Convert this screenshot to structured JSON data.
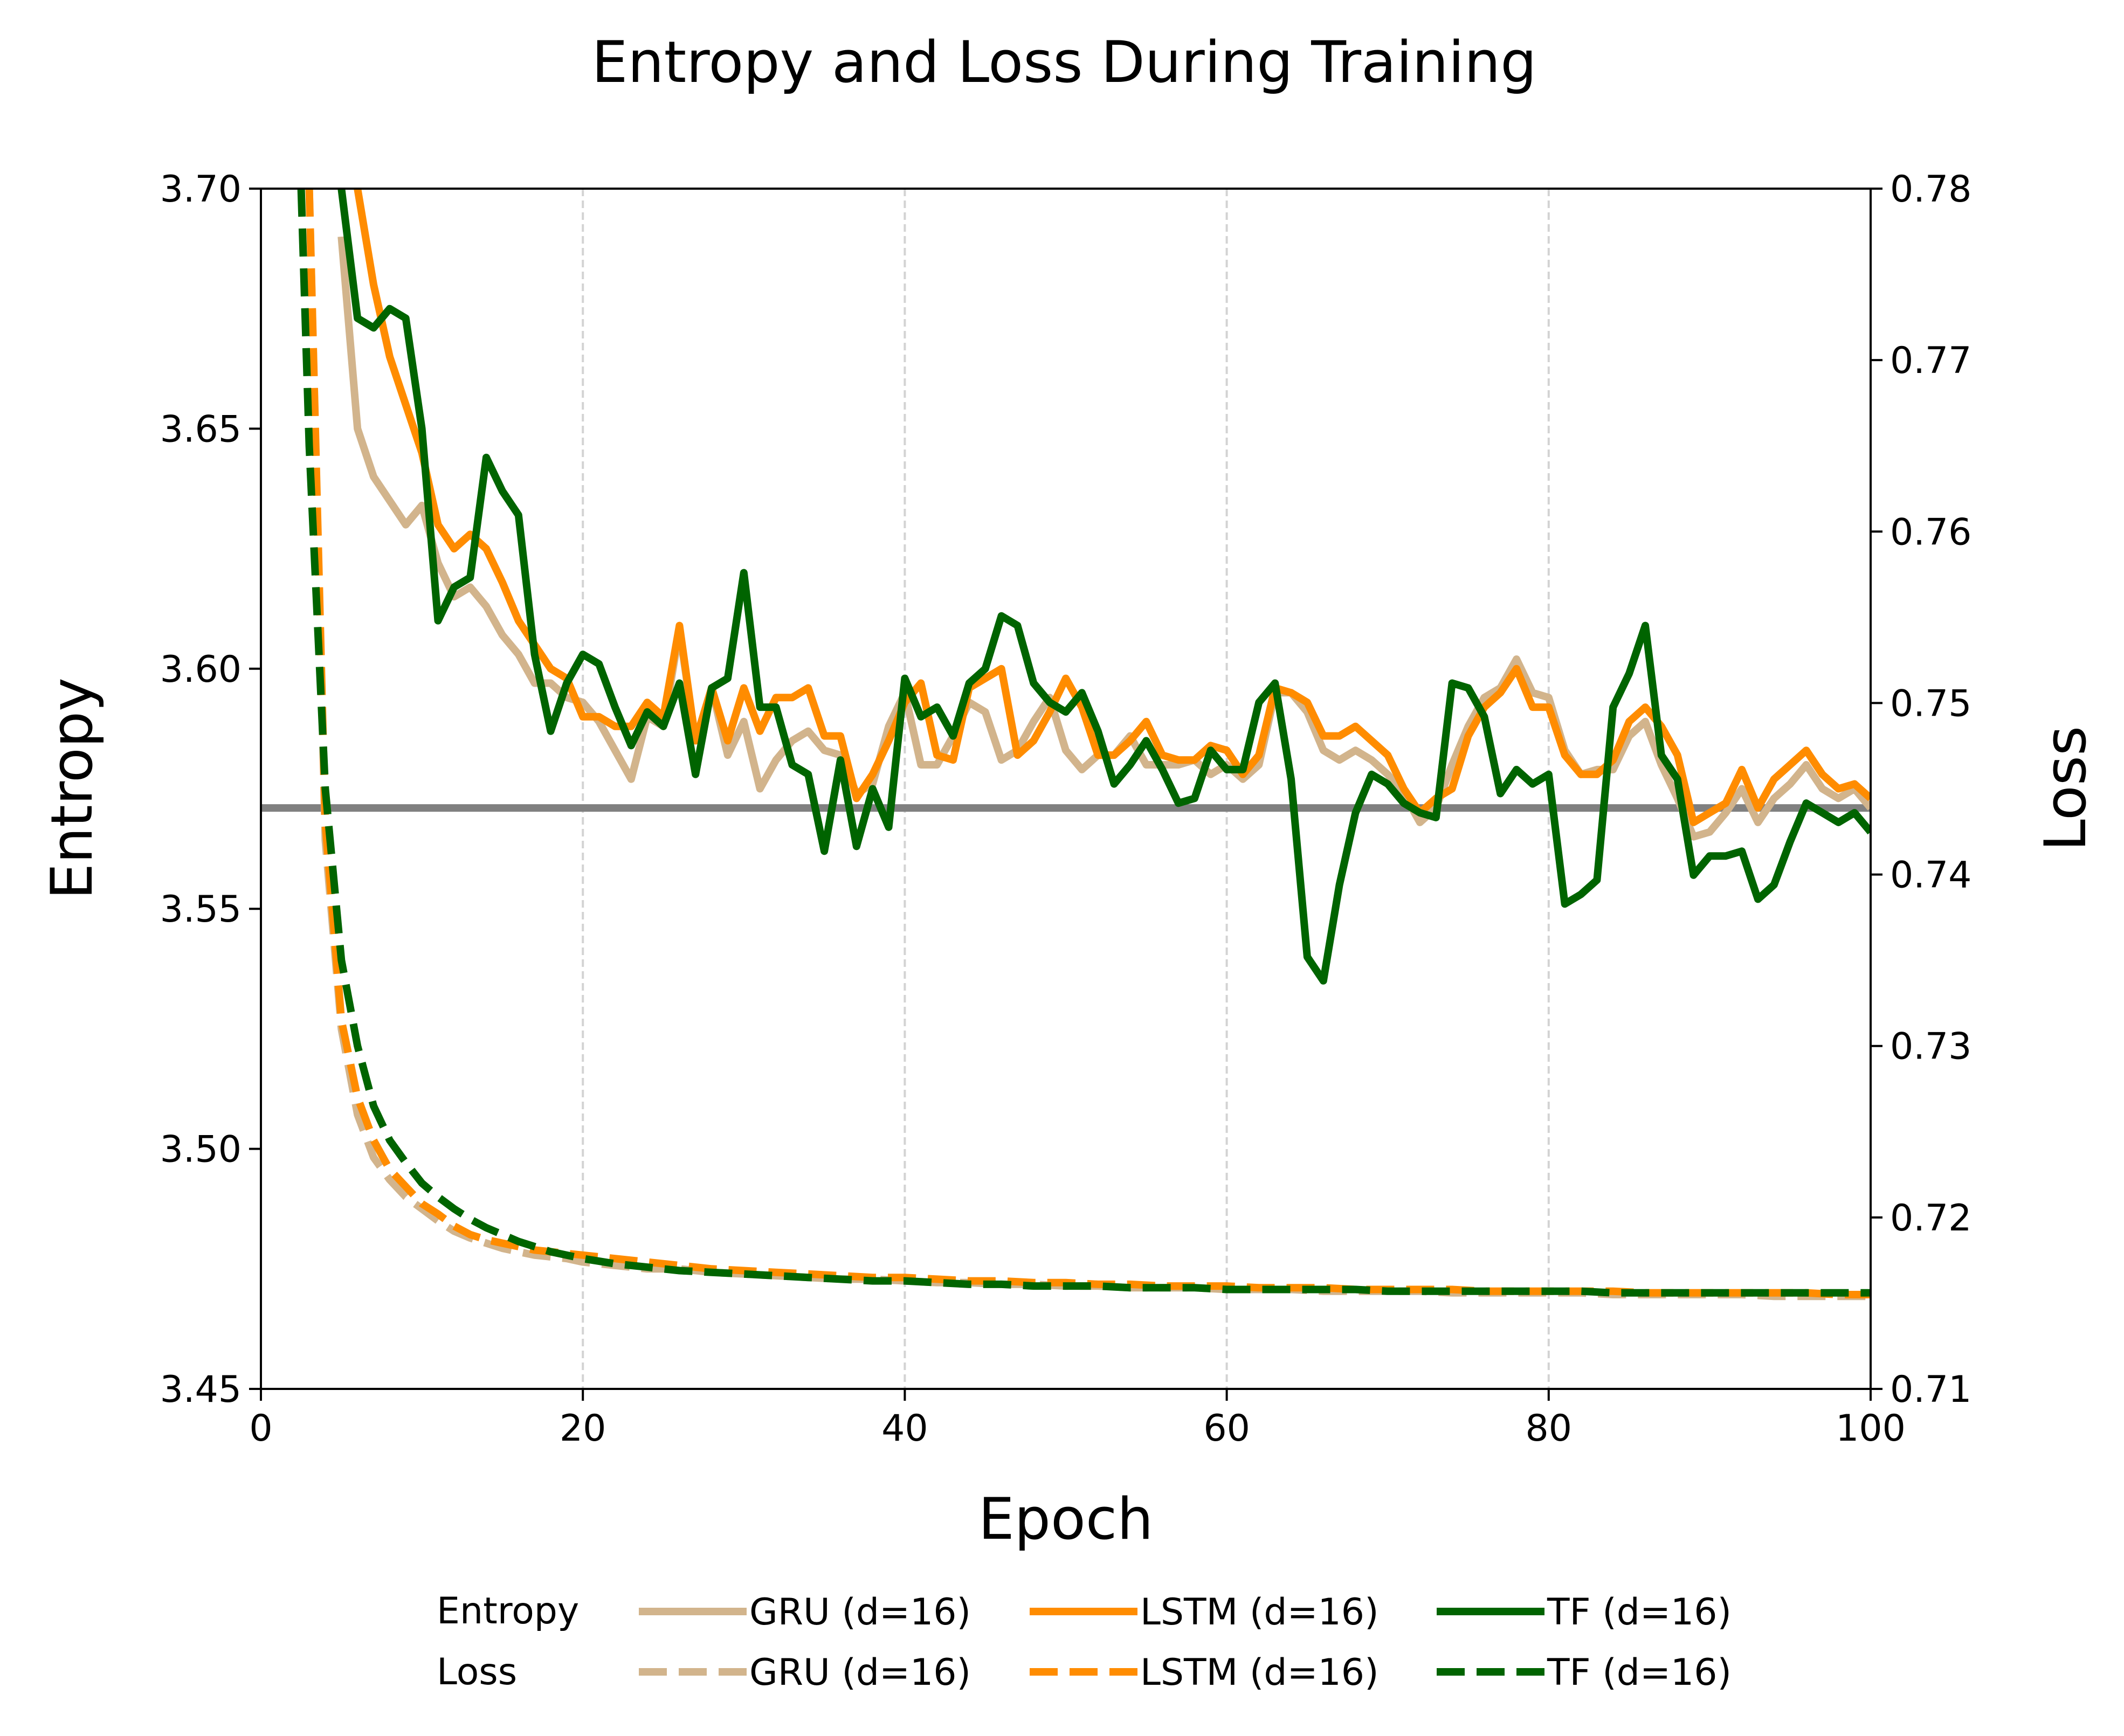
{
  "chart_data": {
    "type": "line",
    "title": "Entropy and Loss During Training",
    "xlabel": "Epoch",
    "ylabel": "Entropy",
    "y2label": "Loss",
    "xlim": [
      0,
      100
    ],
    "ylim": [
      3.45,
      3.7
    ],
    "y2lim": [
      0.71,
      0.78
    ],
    "xticks": [
      0,
      20,
      40,
      60,
      80,
      100
    ],
    "xtick_labels": [
      "0",
      "20",
      "40",
      "60",
      "80",
      "100"
    ],
    "yticks": [
      3.45,
      3.5,
      3.55,
      3.6,
      3.65,
      3.7
    ],
    "ytick_labels": [
      "3.45",
      "3.50",
      "3.55",
      "3.60",
      "3.65",
      "3.70"
    ],
    "y2ticks": [
      0.71,
      0.72,
      0.73,
      0.74,
      0.75,
      0.76,
      0.77,
      0.78
    ],
    "y2tick_labels": [
      "0.71",
      "0.72",
      "0.73",
      "0.74",
      "0.75",
      "0.76",
      "0.77",
      "0.78"
    ],
    "grid": "vertical dashed at x ticks",
    "reference_line": {
      "axis": "entropy",
      "y": 3.571,
      "color": "#808080"
    },
    "legend": {
      "placement": "bottom-center",
      "row_labels": [
        "Entropy",
        "Loss"
      ],
      "entries": [
        {
          "label": "GRU (d=16)",
          "row": "Entropy",
          "color": "#d2b48c",
          "style": "solid"
        },
        {
          "label": "LSTM (d=16)",
          "row": "Entropy",
          "color": "#ff8c00",
          "style": "solid"
        },
        {
          "label": "TF (d=16)",
          "row": "Entropy",
          "color": "#006400",
          "style": "solid"
        },
        {
          "label": "GRU (d=16)",
          "row": "Loss",
          "color": "#d2b48c",
          "style": "dashed"
        },
        {
          "label": "LSTM (d=16)",
          "row": "Loss",
          "color": "#ff8c00",
          "style": "dashed"
        },
        {
          "label": "TF (d=16)",
          "row": "Loss",
          "color": "#006400",
          "style": "dashed"
        }
      ]
    },
    "series": [
      {
        "name": "GRU (d=16)",
        "metric": "Entropy",
        "axis": "left",
        "color": "#d2b48c",
        "style": "solid",
        "x": [
          5,
          6,
          7,
          9,
          10,
          11,
          12,
          13,
          14,
          15,
          16,
          17,
          18,
          19,
          20,
          21,
          22,
          23,
          24,
          25,
          26,
          27,
          28,
          29,
          30,
          31,
          32,
          33,
          34,
          35,
          36,
          37,
          38,
          39,
          40,
          41,
          42,
          43,
          44,
          45,
          46,
          47,
          48,
          49,
          50,
          51,
          52,
          53,
          54,
          55,
          56,
          57,
          58,
          59,
          60,
          61,
          62,
          63,
          64,
          65,
          66,
          67,
          68,
          69,
          70,
          71,
          72,
          73,
          74,
          75,
          76,
          77,
          78,
          79,
          80,
          81,
          82,
          83,
          84,
          85,
          86,
          87,
          88,
          89,
          90,
          91,
          92,
          93,
          94,
          95,
          96,
          97,
          98,
          99,
          100
        ],
        "values": [
          3.69,
          3.65,
          3.64,
          3.63,
          3.634,
          3.622,
          3.615,
          3.617,
          3.613,
          3.607,
          3.603,
          3.597,
          3.597,
          3.594,
          3.593,
          3.589,
          3.583,
          3.577,
          3.59,
          3.588,
          3.608,
          3.585,
          3.596,
          3.582,
          3.589,
          3.575,
          3.581,
          3.585,
          3.587,
          3.583,
          3.582,
          3.574,
          3.576,
          3.588,
          3.595,
          3.58,
          3.58,
          3.586,
          3.593,
          3.591,
          3.581,
          3.583,
          3.589,
          3.594,
          3.583,
          3.579,
          3.582,
          3.582,
          3.586,
          3.58,
          3.58,
          3.58,
          3.581,
          3.578,
          3.58,
          3.577,
          3.58,
          3.595,
          3.595,
          3.591,
          3.583,
          3.581,
          3.583,
          3.581,
          3.578,
          3.574,
          3.568,
          3.571,
          3.58,
          3.588,
          3.594,
          3.596,
          3.602,
          3.595,
          3.594,
          3.583,
          3.578,
          3.579,
          3.579,
          3.586,
          3.589,
          3.58,
          3.573,
          3.565,
          3.566,
          3.57,
          3.575,
          3.568,
          3.573,
          3.576,
          3.58,
          3.575,
          3.573,
          3.575,
          3.571
        ]
      },
      {
        "name": "LSTM (d=16)",
        "metric": "Entropy",
        "axis": "left",
        "color": "#ff8c00",
        "style": "solid",
        "x": [
          6,
          7,
          8,
          9,
          10,
          11,
          12,
          13,
          14,
          15,
          16,
          17,
          18,
          19,
          20,
          21,
          22,
          23,
          24,
          25,
          26,
          27,
          28,
          29,
          30,
          31,
          32,
          33,
          34,
          35,
          36,
          37,
          38,
          39,
          40,
          41,
          42,
          43,
          44,
          45,
          46,
          47,
          48,
          49,
          50,
          51,
          52,
          53,
          54,
          55,
          56,
          57,
          58,
          59,
          60,
          61,
          62,
          63,
          64,
          65,
          66,
          67,
          68,
          69,
          70,
          71,
          72,
          73,
          74,
          75,
          76,
          77,
          78,
          79,
          80,
          81,
          82,
          83,
          84,
          85,
          86,
          87,
          88,
          89,
          90,
          91,
          92,
          93,
          94,
          95,
          96,
          97,
          98,
          99,
          100
        ],
        "values": [
          3.7,
          3.68,
          3.665,
          3.655,
          3.645,
          3.63,
          3.625,
          3.628,
          3.625,
          3.618,
          3.61,
          3.605,
          3.6,
          3.598,
          3.59,
          3.59,
          3.588,
          3.588,
          3.593,
          3.59,
          3.609,
          3.585,
          3.596,
          3.585,
          3.596,
          3.587,
          3.594,
          3.594,
          3.596,
          3.586,
          3.586,
          3.573,
          3.578,
          3.585,
          3.593,
          3.597,
          3.582,
          3.581,
          3.596,
          3.598,
          3.6,
          3.582,
          3.585,
          3.591,
          3.598,
          3.592,
          3.582,
          3.582,
          3.585,
          3.589,
          3.582,
          3.581,
          3.581,
          3.584,
          3.583,
          3.578,
          3.582,
          3.596,
          3.595,
          3.593,
          3.586,
          3.586,
          3.588,
          3.585,
          3.582,
          3.575,
          3.57,
          3.573,
          3.575,
          3.586,
          3.592,
          3.595,
          3.6,
          3.592,
          3.592,
          3.582,
          3.578,
          3.578,
          3.581,
          3.589,
          3.592,
          3.588,
          3.582,
          3.568,
          3.57,
          3.572,
          3.579,
          3.571,
          3.577,
          3.58,
          3.583,
          3.578,
          3.575,
          3.576,
          3.573
        ]
      },
      {
        "name": "TF (d=16)",
        "metric": "Entropy",
        "axis": "left",
        "color": "#006400",
        "style": "solid",
        "x": [
          5,
          6,
          7,
          8,
          9,
          10,
          11,
          12,
          13,
          14,
          15,
          16,
          17,
          18,
          19,
          20,
          21,
          22,
          23,
          24,
          25,
          26,
          27,
          28,
          29,
          30,
          31,
          32,
          33,
          34,
          35,
          36,
          37,
          38,
          39,
          40,
          41,
          42,
          43,
          44,
          45,
          46,
          47,
          48,
          49,
          50,
          51,
          52,
          53,
          54,
          55,
          56,
          57,
          58,
          59,
          60,
          61,
          62,
          63,
          64,
          65,
          66,
          67,
          68,
          69,
          70,
          71,
          72,
          73,
          74,
          75,
          76,
          77,
          78,
          79,
          80,
          81,
          82,
          83,
          84,
          85,
          86,
          87,
          88,
          89,
          90,
          91,
          92,
          93,
          94,
          95,
          96,
          97,
          98,
          99,
          100
        ],
        "values": [
          3.7,
          3.673,
          3.671,
          3.675,
          3.673,
          3.65,
          3.61,
          3.617,
          3.619,
          3.644,
          3.637,
          3.632,
          3.603,
          3.587,
          3.597,
          3.603,
          3.601,
          3.592,
          3.584,
          3.591,
          3.588,
          3.597,
          3.578,
          3.596,
          3.598,
          3.62,
          3.592,
          3.592,
          3.58,
          3.578,
          3.562,
          3.581,
          3.563,
          3.575,
          3.567,
          3.598,
          3.59,
          3.592,
          3.586,
          3.597,
          3.6,
          3.611,
          3.609,
          3.597,
          3.593,
          3.591,
          3.595,
          3.587,
          3.576,
          3.58,
          3.585,
          3.579,
          3.572,
          3.573,
          3.583,
          3.579,
          3.579,
          3.593,
          3.597,
          3.577,
          3.54,
          3.535,
          3.555,
          3.57,
          3.578,
          3.576,
          3.572,
          3.57,
          3.569,
          3.597,
          3.596,
          3.59,
          3.574,
          3.579,
          3.576,
          3.578,
          3.551,
          3.553,
          3.556,
          3.592,
          3.599,
          3.609,
          3.582,
          3.577,
          3.557,
          3.561,
          3.561,
          3.562,
          3.552,
          3.555,
          3.564,
          3.572,
          3.57,
          3.568,
          3.57,
          3.566
        ]
      },
      {
        "name": "GRU (d=16)",
        "metric": "Loss",
        "axis": "right",
        "color": "#d2b48c",
        "style": "dashed",
        "x": [
          3,
          4,
          5,
          6,
          7,
          8,
          9,
          10,
          11,
          12,
          13,
          14,
          15,
          16,
          17,
          18,
          19,
          20,
          22,
          24,
          26,
          28,
          30,
          32,
          34,
          36,
          38,
          40,
          42,
          44,
          46,
          48,
          50,
          52,
          54,
          56,
          58,
          60,
          62,
          64,
          66,
          68,
          70,
          72,
          74,
          76,
          78,
          80,
          82,
          84,
          86,
          88,
          90,
          92,
          94,
          96,
          98,
          100
        ],
        "values": [
          0.78,
          0.742,
          0.731,
          0.726,
          0.7235,
          0.7222,
          0.7212,
          0.7205,
          0.7198,
          0.7192,
          0.7188,
          0.7185,
          0.7182,
          0.718,
          0.7178,
          0.7177,
          0.7176,
          0.7174,
          0.7172,
          0.717,
          0.717,
          0.7168,
          0.7167,
          0.7166,
          0.7165,
          0.7164,
          0.7164,
          0.7163,
          0.7162,
          0.7162,
          0.7161,
          0.7161,
          0.716,
          0.716,
          0.7159,
          0.7159,
          0.7159,
          0.7158,
          0.7158,
          0.7158,
          0.7157,
          0.7157,
          0.7157,
          0.7157,
          0.7156,
          0.7156,
          0.7156,
          0.7156,
          0.7156,
          0.7155,
          0.7155,
          0.7155,
          0.7155,
          0.7155,
          0.7154,
          0.7154,
          0.7154,
          0.7154
        ]
      },
      {
        "name": "LSTM (d=16)",
        "metric": "Loss",
        "axis": "right",
        "color": "#ff8c00",
        "style": "dashed",
        "x": [
          3,
          4,
          5,
          6,
          7,
          8,
          9,
          10,
          11,
          12,
          13,
          14,
          15,
          16,
          17,
          18,
          19,
          20,
          22,
          24,
          26,
          28,
          30,
          32,
          34,
          36,
          38,
          40,
          42,
          44,
          46,
          48,
          50,
          52,
          54,
          56,
          58,
          60,
          62,
          64,
          66,
          68,
          70,
          72,
          74,
          76,
          78,
          80,
          82,
          84,
          86,
          88,
          90,
          92,
          94,
          96,
          98,
          100
        ],
        "values": [
          0.78,
          0.743,
          0.7315,
          0.727,
          0.7245,
          0.7228,
          0.7218,
          0.7208,
          0.7202,
          0.7195,
          0.719,
          0.7187,
          0.7185,
          0.7183,
          0.7181,
          0.718,
          0.7179,
          0.7178,
          0.7176,
          0.7174,
          0.7172,
          0.717,
          0.7169,
          0.7168,
          0.7167,
          0.7166,
          0.7165,
          0.7165,
          0.7164,
          0.7163,
          0.7163,
          0.7162,
          0.7162,
          0.7161,
          0.7161,
          0.716,
          0.716,
          0.716,
          0.7159,
          0.7159,
          0.7159,
          0.7158,
          0.7158,
          0.7158,
          0.7158,
          0.7157,
          0.7157,
          0.7157,
          0.7157,
          0.7157,
          0.7156,
          0.7156,
          0.7156,
          0.7156,
          0.7156,
          0.7156,
          0.7155,
          0.7155
        ]
      },
      {
        "name": "TF (d=16)",
        "metric": "Loss",
        "axis": "right",
        "color": "#006400",
        "style": "dashed",
        "x": [
          2.5,
          3,
          4,
          5,
          6,
          7,
          8,
          9,
          10,
          11,
          12,
          13,
          14,
          15,
          16,
          17,
          18,
          19,
          20,
          22,
          24,
          26,
          28,
          30,
          32,
          34,
          36,
          38,
          40,
          42,
          44,
          46,
          48,
          50,
          52,
          54,
          56,
          58,
          60,
          62,
          64,
          66,
          68,
          70,
          72,
          74,
          76,
          78,
          80,
          82,
          84,
          86,
          88,
          90,
          92,
          94,
          96,
          98,
          100
        ],
        "values": [
          0.78,
          0.765,
          0.745,
          0.735,
          0.73,
          0.7265,
          0.7245,
          0.7232,
          0.722,
          0.7212,
          0.7205,
          0.7199,
          0.7194,
          0.719,
          0.7186,
          0.7183,
          0.718,
          0.7178,
          0.7176,
          0.7173,
          0.7171,
          0.7169,
          0.7168,
          0.7167,
          0.7166,
          0.7165,
          0.7164,
          0.7163,
          0.7163,
          0.7162,
          0.7161,
          0.7161,
          0.716,
          0.716,
          0.716,
          0.7159,
          0.7159,
          0.7159,
          0.7158,
          0.7158,
          0.7158,
          0.7158,
          0.7158,
          0.7157,
          0.7157,
          0.7157,
          0.7157,
          0.7157,
          0.7157,
          0.7157,
          0.7156,
          0.7156,
          0.7156,
          0.7156,
          0.7156,
          0.7156,
          0.7156,
          0.7156,
          0.7156
        ]
      }
    ]
  }
}
